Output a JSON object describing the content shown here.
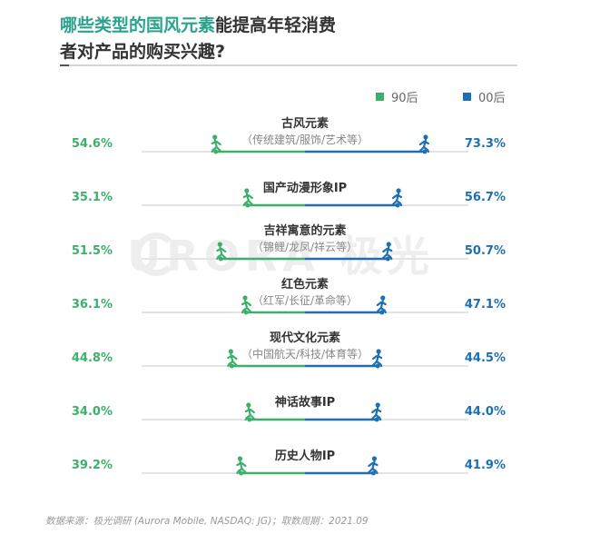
{
  "header": {
    "title_highlight": "哪些类型的国风元素",
    "title_rest_line1": "能提高年轻消费",
    "title_line2": "者对产品的购买兴趣?"
  },
  "legend": [
    {
      "label": "90后",
      "color": "#3cb06a"
    },
    {
      "label": "00后",
      "color": "#1d6fb3"
    }
  ],
  "watermark": "URORA 极光",
  "chart_data": {
    "type": "bar",
    "categories": [
      {
        "name": "古风元素",
        "sub": "（传统建筑/服饰/艺术等）"
      },
      {
        "name": "国产动漫形象IP",
        "sub": ""
      },
      {
        "name": "吉祥寓意的元素",
        "sub": "（锦鲤/龙凤/祥云等）"
      },
      {
        "name": "红色元素",
        "sub": "（红军/长征/革命等）"
      },
      {
        "name": "现代文化元素",
        "sub": "（中国航天/科技/体育等）"
      },
      {
        "name": "神话故事IP",
        "sub": ""
      },
      {
        "name": "历史人物IP",
        "sub": ""
      }
    ],
    "series": [
      {
        "name": "90后",
        "values": [
          54.6,
          35.1,
          51.5,
          36.1,
          44.8,
          34.0,
          39.2
        ],
        "labels": [
          "54.6%",
          "35.1%",
          "51.5%",
          "36.1%",
          "44.8%",
          "34.0%",
          "39.2%"
        ],
        "color": "#3cb06a"
      },
      {
        "name": "00后",
        "values": [
          73.3,
          56.7,
          50.7,
          47.1,
          44.5,
          44.0,
          41.9
        ],
        "labels": [
          "73.3%",
          "56.7%",
          "50.7%",
          "47.1%",
          "44.5%",
          "44.0%",
          "41.9%"
        ],
        "color": "#1d6fb3"
      }
    ],
    "track_color": "#e3e3e3"
  },
  "footnote": "数据来源：极光调研 (Aurora Mobile, NASDAQ: JG)；取数周期：2021.09"
}
